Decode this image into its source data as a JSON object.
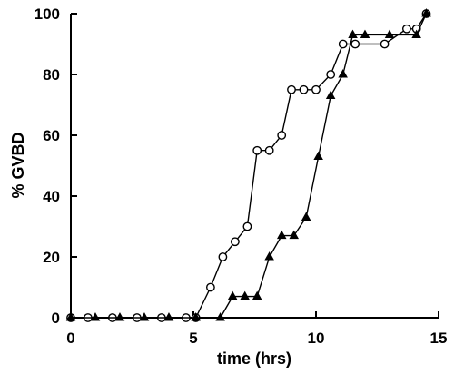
{
  "chart_data": {
    "type": "line",
    "title": "",
    "xlabel": "time  (hrs)",
    "ylabel": "% GVBD",
    "xlim": [
      0,
      15
    ],
    "ylim": [
      0,
      100
    ],
    "xticks": [
      0,
      5,
      10,
      15
    ],
    "yticks": [
      0,
      20,
      40,
      60,
      80,
      100
    ],
    "grid": false,
    "series": [
      {
        "marker": "open-circle",
        "x": [
          0,
          0.7,
          1.7,
          2.7,
          3.7,
          4.7,
          5.1,
          5.7,
          6.2,
          6.7,
          7.2,
          7.6,
          8.1,
          8.6,
          9.0,
          9.5,
          10.0,
          10.6,
          11.1,
          11.6,
          12.8,
          13.7,
          14.1,
          14.5
        ],
        "y": [
          0,
          0,
          0,
          0,
          0,
          0,
          0,
          10,
          20,
          25,
          30,
          55,
          55,
          60,
          75,
          75,
          75,
          80,
          90,
          90,
          90,
          95,
          95,
          100
        ]
      },
      {
        "marker": "filled-triangle",
        "x": [
          0,
          1.0,
          2.0,
          3.0,
          4.0,
          5.1,
          6.1,
          6.6,
          7.1,
          7.6,
          8.1,
          8.6,
          9.1,
          9.6,
          10.1,
          10.6,
          11.1,
          11.5,
          12.0,
          13.0,
          14.1,
          14.5
        ],
        "y": [
          0,
          0,
          0,
          0,
          0,
          0,
          0,
          7,
          7,
          7,
          20,
          27,
          27,
          33,
          53,
          73,
          80,
          93,
          93,
          93,
          93,
          100
        ]
      }
    ]
  }
}
